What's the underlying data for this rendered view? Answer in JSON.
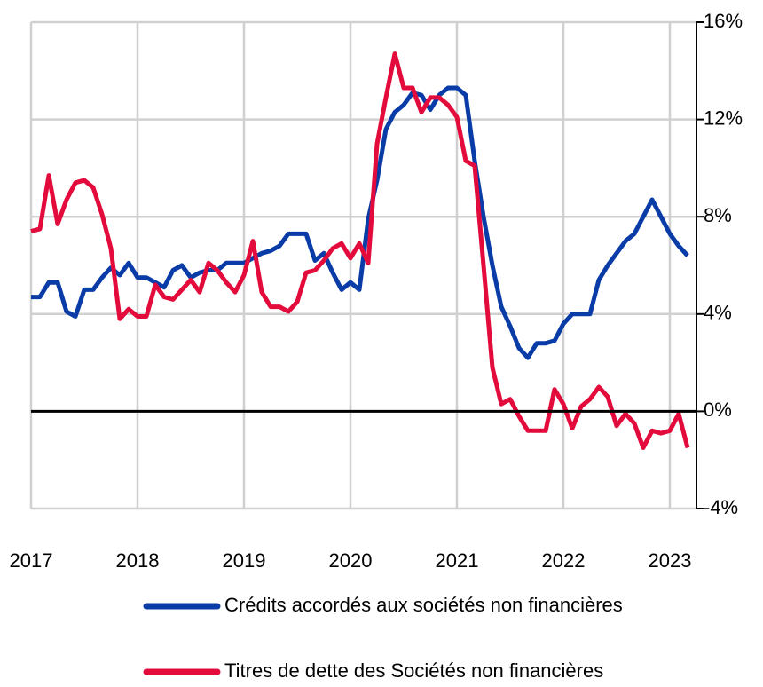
{
  "chart_data": {
    "type": "line",
    "x": [
      2017,
      2017.083,
      2017.167,
      2017.25,
      2017.333,
      2017.417,
      2017.5,
      2017.583,
      2017.667,
      2017.75,
      2017.833,
      2017.917,
      2018,
      2018.083,
      2018.167,
      2018.25,
      2018.333,
      2018.417,
      2018.5,
      2018.583,
      2018.667,
      2018.75,
      2018.833,
      2018.917,
      2019,
      2019.083,
      2019.167,
      2019.25,
      2019.333,
      2019.417,
      2019.5,
      2019.583,
      2019.667,
      2019.75,
      2019.833,
      2019.917,
      2020,
      2020.083,
      2020.167,
      2020.25,
      2020.333,
      2020.417,
      2020.5,
      2020.583,
      2020.667,
      2020.75,
      2020.833,
      2020.917,
      2021,
      2021.083,
      2021.167,
      2021.25,
      2021.333,
      2021.417,
      2021.5,
      2021.583,
      2021.667,
      2021.75,
      2021.833,
      2021.917,
      2022,
      2022.083,
      2022.167,
      2022.25,
      2022.333,
      2022.417,
      2022.5,
      2022.583,
      2022.667,
      2022.75,
      2022.833,
      2022.917,
      2023,
      2023.083,
      2023.167
    ],
    "series": [
      {
        "name": "Crédits accordés aux sociétés non financières",
        "color": "#0a3ca8",
        "values": [
          4.7,
          4.7,
          5.3,
          5.3,
          4.1,
          3.9,
          5.0,
          5.0,
          5.5,
          5.9,
          5.6,
          6.1,
          5.5,
          5.5,
          5.3,
          5.1,
          5.8,
          6.0,
          5.5,
          5.7,
          5.8,
          5.8,
          6.1,
          6.1,
          6.1,
          6.3,
          6.5,
          6.6,
          6.8,
          7.3,
          7.3,
          7.3,
          6.2,
          6.5,
          5.7,
          5.0,
          5.3,
          5.0,
          7.9,
          9.5,
          11.6,
          12.3,
          12.6,
          13.1,
          13.0,
          12.4,
          13.0,
          13.3,
          13.3,
          13.0,
          10.3,
          8.0,
          6.0,
          4.3,
          3.5,
          2.6,
          2.2,
          2.8,
          2.8,
          2.9,
          3.6,
          4.0,
          4.0,
          4.0,
          5.4,
          6.0,
          6.5,
          7.0,
          7.3,
          8.0,
          8.7,
          8.0,
          7.3,
          6.8,
          6.4
        ]
      },
      {
        "name": "Titres de dette des Sociétés non financières",
        "color": "#e30a3c",
        "values": [
          7.4,
          7.5,
          9.7,
          7.7,
          8.7,
          9.4,
          9.5,
          9.2,
          8.1,
          6.7,
          3.8,
          4.2,
          3.9,
          3.9,
          5.2,
          4.7,
          4.6,
          5.0,
          5.4,
          4.9,
          6.1,
          5.8,
          5.3,
          4.9,
          5.6,
          7.0,
          4.9,
          4.3,
          4.3,
          4.1,
          4.5,
          5.7,
          5.8,
          6.2,
          6.7,
          6.9,
          6.3,
          6.9,
          6.1,
          11.0,
          12.9,
          14.7,
          13.3,
          13.3,
          12.3,
          12.9,
          12.9,
          12.6,
          12.1,
          10.3,
          10.1,
          6.0,
          1.8,
          0.3,
          0.5,
          -0.2,
          -0.8,
          -0.8,
          -0.8,
          0.9,
          0.3,
          -0.7,
          0.2,
          0.5,
          1.0,
          0.6,
          -0.6,
          -0.1,
          -0.5,
          -1.5,
          -0.8,
          -0.9,
          -0.8,
          -0.1,
          -1.5
        ]
      }
    ],
    "xlim": [
      2017,
      2023.25
    ],
    "xticks": [
      2017,
      2018,
      2019,
      2020,
      2021,
      2022,
      2023
    ],
    "ylim": [
      -4,
      16
    ],
    "yticks": [
      {
        "value": -4,
        "label": "-4%"
      },
      {
        "value": 0,
        "label": "0%"
      },
      {
        "value": 4,
        "label": "4%"
      },
      {
        "value": 8,
        "label": "8%"
      },
      {
        "value": 12,
        "label": "12%"
      },
      {
        "value": 16,
        "label": "16%"
      }
    ],
    "grid": true,
    "legend": "bottom"
  }
}
